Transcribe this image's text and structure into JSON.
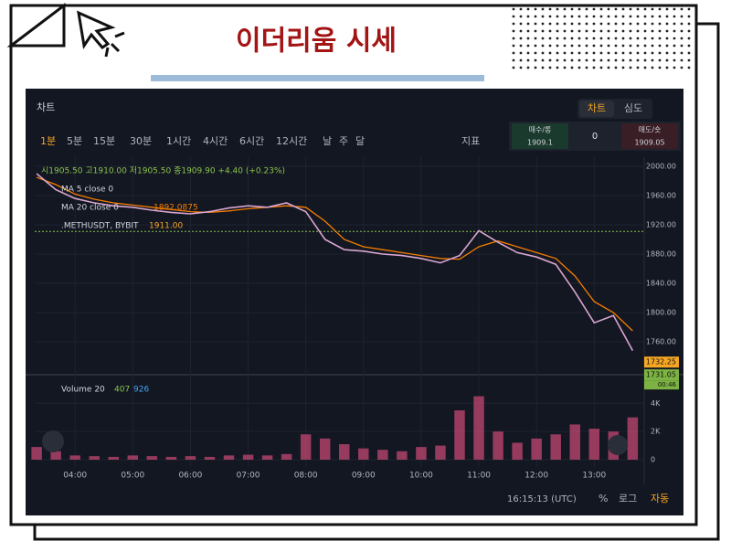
{
  "header": {
    "title": "이더리움 시세"
  },
  "panel": {
    "title": "차트",
    "tabs": [
      "차트",
      "심도"
    ],
    "intervals": [
      "1분",
      "5분",
      "15분",
      "30분",
      "1시간",
      "4시간",
      "6시간",
      "12시간",
      "날",
      "주",
      "달"
    ],
    "indicator_button": "지표",
    "order": {
      "buy_label": "매수/롱",
      "buy_price": "1909.1",
      "size": "0",
      "sell_label": "매도/숏",
      "sell_price": "1909.05"
    },
    "ohlc": "시1905.50 고1910.00 저1905.50 종1909.90 +4.40 (+0.23%)",
    "ma5": "MA 5 close 0",
    "footer": {
      "clock": "16:15:13 (UTC)",
      "percent": "%",
      "log": "로그",
      "auto": "자동"
    }
  },
  "chart_data": {
    "type": "line",
    "x": [
      "03:20",
      "03:40",
      "04:00",
      "04:20",
      "04:40",
      "05:00",
      "05:20",
      "05:40",
      "06:00",
      "06:20",
      "06:40",
      "07:00",
      "07:20",
      "07:40",
      "08:00",
      "08:20",
      "08:40",
      "09:00",
      "09:20",
      "09:40",
      "10:00",
      "10:20",
      "10:40",
      "11:00",
      "11:20",
      "11:40",
      "12:00",
      "12:20",
      "12:40",
      "13:00",
      "13:20",
      "13:40"
    ],
    "values": [
      1990,
      1968,
      1956,
      1950,
      1946,
      1944,
      1940,
      1937,
      1935,
      1938,
      1943,
      1946,
      1944,
      1950,
      1938,
      1900,
      1886,
      1884,
      1880,
      1878,
      1874,
      1868,
      1878,
      1912,
      1896,
      1882,
      1876,
      1866,
      1828,
      1786,
      1796,
      1748
    ],
    "color": "#d9a6d0",
    "ma20": {
      "label": "MA 20 close 0",
      "value": 1892.0875,
      "color": "#f57c00",
      "values": [
        1985,
        1975,
        1962,
        1955,
        1950,
        1947,
        1944,
        1941,
        1938,
        1937,
        1939,
        1942,
        1944,
        1946,
        1944,
        1925,
        1900,
        1890,
        1886,
        1882,
        1878,
        1874,
        1873,
        1890,
        1898,
        1890,
        1882,
        1874,
        1850,
        1815,
        1800,
        1775
      ]
    },
    "mark_line": {
      "label": ".METHUSDT, BYBIT",
      "value": 1911.0,
      "value_label": "1911.00",
      "color": "#8bc34a"
    },
    "last_prices": [
      {
        "value": 1732.25,
        "label": "1732.25",
        "color": "#f5a623"
      },
      {
        "value": 1731.05,
        "label": "1731.05",
        "color": "#7cb342"
      }
    ],
    "countdown": "00:46",
    "xlim": [
      "03:18",
      "13:52"
    ],
    "xticks": [
      "04:00",
      "05:00",
      "06:00",
      "07:00",
      "08:00",
      "09:00",
      "10:00",
      "11:00",
      "12:00",
      "13:00"
    ],
    "ylim": [
      1717.5,
      2012.5
    ],
    "yticks": [
      {
        "value": 2000,
        "label": "2000.00"
      },
      {
        "value": 1960,
        "label": "1960.00"
      },
      {
        "value": 1920,
        "label": "1920.00"
      },
      {
        "value": 1880,
        "label": "1880.00"
      },
      {
        "value": 1840,
        "label": "1840.00"
      },
      {
        "value": 1800,
        "label": "1800.00"
      },
      {
        "value": 1760,
        "label": "1760.00"
      }
    ],
    "grid": true,
    "volume": {
      "label": "Volume 20",
      "legend_values": [
        407,
        926
      ],
      "color": "#b8456e",
      "values": [
        900,
        600,
        300,
        250,
        200,
        300,
        250,
        200,
        250,
        200,
        300,
        350,
        300,
        400,
        1800,
        1500,
        1100,
        800,
        700,
        600,
        900,
        1000,
        3500,
        4500,
        2000,
        1200,
        1500,
        1800,
        2500,
        2200,
        2000,
        3000
      ],
      "ylim": [
        0,
        5900
      ],
      "yticks": [
        {
          "value": 0,
          "label": "0"
        },
        {
          "value": 2000,
          "label": "2K"
        },
        {
          "value": 4000,
          "label": "4K"
        }
      ]
    }
  }
}
